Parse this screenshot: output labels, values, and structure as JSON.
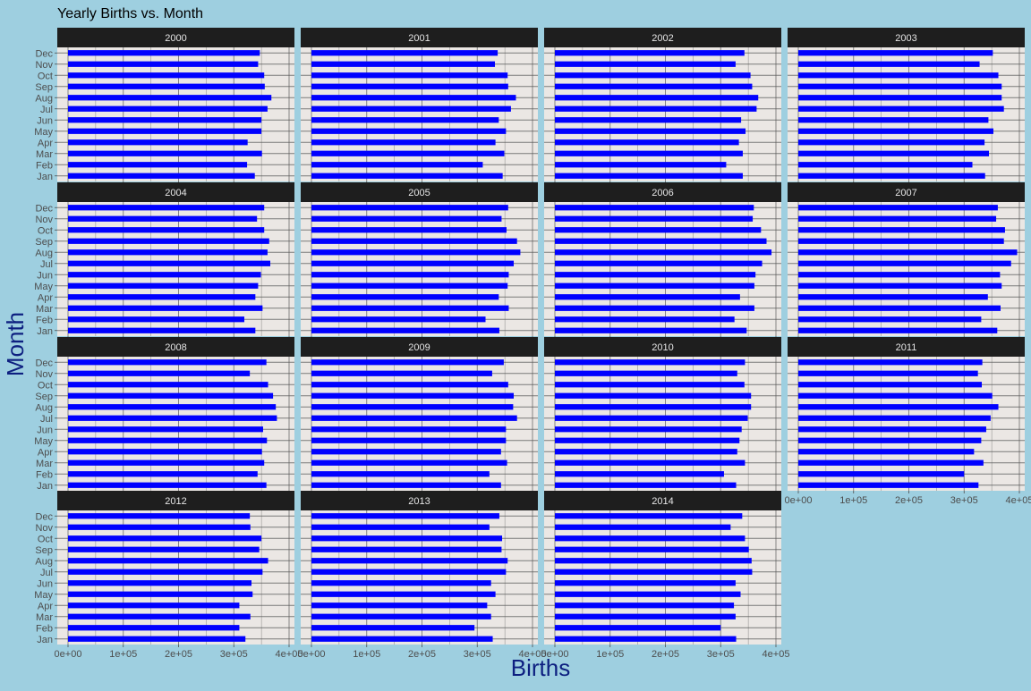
{
  "colors": {
    "background": "#9ecfe0",
    "panel": "#ebe7e4",
    "strip": "#1e1e1e",
    "strip_text": "#e6e6e6",
    "bar": "#0000ff",
    "grid": "#555555",
    "axis_text": "#4d4d4d",
    "axis_title": "#0d1f80"
  },
  "chart_data": {
    "type": "bar",
    "orientation": "horizontal",
    "facet_by": "year",
    "title": "Yearly Births vs. Month",
    "xlabel": "Births",
    "ylabel": "Month",
    "categories": [
      "Jan",
      "Feb",
      "Mar",
      "Apr",
      "May",
      "Jun",
      "Jul",
      "Aug",
      "Sep",
      "Oct",
      "Nov",
      "Dec"
    ],
    "xlim": [
      0,
      400000
    ],
    "xticks": [
      0,
      100000,
      200000,
      300000,
      400000
    ],
    "xtick_labels": [
      "0e+00",
      "1e+05",
      "2e+05",
      "3e+05",
      "4e+05"
    ],
    "grid": true,
    "panels": [
      {
        "label": "2000",
        "values": [
          338000,
          324000,
          351000,
          325000,
          350000,
          350000,
          361000,
          368000,
          356000,
          355000,
          344000,
          347000
        ]
      },
      {
        "label": "2001",
        "values": [
          346000,
          310000,
          349000,
          333000,
          352000,
          339000,
          361000,
          370000,
          356000,
          355000,
          332000,
          337000
        ]
      },
      {
        "label": "2002",
        "values": [
          340000,
          310000,
          340000,
          333000,
          345000,
          337000,
          365000,
          368000,
          357000,
          354000,
          327000,
          343000
        ]
      },
      {
        "label": "2003",
        "values": [
          338000,
          315000,
          345000,
          337000,
          353000,
          344000,
          372000,
          368000,
          368000,
          362000,
          328000,
          352000
        ]
      },
      {
        "label": "2004",
        "values": [
          339000,
          319000,
          352000,
          339000,
          344000,
          349000,
          366000,
          361000,
          364000,
          355000,
          342000,
          355000
        ]
      },
      {
        "label": "2005",
        "values": [
          340000,
          315000,
          357000,
          339000,
          355000,
          357000,
          366000,
          378000,
          372000,
          353000,
          344000,
          356000
        ]
      },
      {
        "label": "2006",
        "values": [
          347000,
          325000,
          361000,
          335000,
          361000,
          363000,
          375000,
          392000,
          383000,
          373000,
          358000,
          360000
        ]
      },
      {
        "label": "2007",
        "values": [
          360000,
          331000,
          366000,
          343000,
          368000,
          365000,
          385000,
          396000,
          372000,
          374000,
          358000,
          361000
        ]
      },
      {
        "label": "2008",
        "values": [
          359000,
          343000,
          355000,
          351000,
          360000,
          353000,
          378000,
          376000,
          371000,
          362000,
          329000,
          359000
        ]
      },
      {
        "label": "2009",
        "values": [
          343000,
          322000,
          354000,
          343000,
          352000,
          352000,
          372000,
          365000,
          366000,
          356000,
          327000,
          348000
        ]
      },
      {
        "label": "2010",
        "values": [
          328000,
          306000,
          344000,
          330000,
          334000,
          338000,
          349000,
          355000,
          355000,
          343000,
          330000,
          344000
        ]
      },
      {
        "label": "2011",
        "values": [
          326000,
          300000,
          335000,
          318000,
          331000,
          340000,
          348000,
          362000,
          351000,
          332000,
          325000,
          333000
        ]
      },
      {
        "label": "2012",
        "values": [
          321000,
          310000,
          330000,
          310000,
          334000,
          332000,
          352000,
          362000,
          346000,
          350000,
          330000,
          329000
        ]
      },
      {
        "label": "2013",
        "values": [
          328000,
          295000,
          325000,
          318000,
          333000,
          325000,
          352000,
          355000,
          344000,
          345000,
          322000,
          340000
        ]
      },
      {
        "label": "2014",
        "values": [
          328000,
          300000,
          327000,
          324000,
          336000,
          327000,
          357000,
          356000,
          351000,
          344000,
          318000,
          339000
        ]
      }
    ]
  }
}
